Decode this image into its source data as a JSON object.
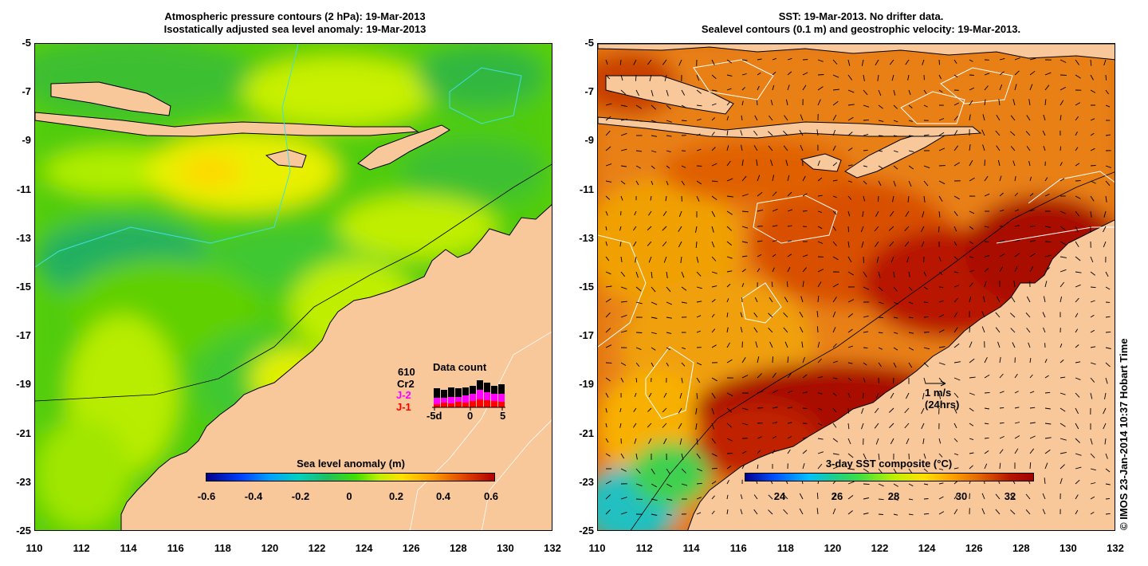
{
  "left_panel": {
    "title_line1": "Atmospheric pressure contours (2 hPa): 19-Mar-2013",
    "title_line2": "Isostatically adjusted sea level anomaly: 19-Mar-2013",
    "colorbar_title": "Sea level anomaly (m)",
    "colorbar_ticks": [
      "-0.6",
      "-0.4",
      "-0.2",
      "0",
      "0.2",
      "0.4",
      "0.6"
    ],
    "data_count": {
      "title": "Data count",
      "total": "610",
      "satellites": [
        "Cr2",
        "J-2",
        "J-1"
      ],
      "satellite_colors": [
        "#000000",
        "#ff00ff",
        "#ff0000"
      ],
      "axis_ticks": [
        "-5d",
        "0",
        "5"
      ]
    }
  },
  "right_panel": {
    "title_line1": "SST: 19-Mar-2013. No drifter data.",
    "title_line2": "Sealevel contours (0.1 m) and geostrophic velocity: 19-Mar-2013.",
    "colorbar_title": "3-day SST composite (°C)",
    "colorbar_ticks": [
      "24",
      "26",
      "28",
      "30",
      "32"
    ],
    "scale_arrow_label": "1 m/s",
    "scale_arrow_sublabel": "(24hrs)"
  },
  "y_ticks": [
    "-5",
    "-7",
    "-9",
    "-11",
    "-13",
    "-15",
    "-17",
    "-19",
    "-21",
    "-23",
    "-25"
  ],
  "x_ticks": [
    "110",
    "112",
    "114",
    "116",
    "118",
    "120",
    "122",
    "124",
    "126",
    "128",
    "130",
    "132"
  ],
  "credit": "© IMOS 23-Jan-2014 10:37 Hobart Time",
  "colors": {
    "land": "#f8c89a",
    "ssla_ramp": [
      "#00008b",
      "#0060ff",
      "#00c0e0",
      "#20c060",
      "#40e000",
      "#c0f000",
      "#ffe000",
      "#ff9000",
      "#e04000",
      "#b00000"
    ],
    "sst_ramp": [
      "#000090",
      "#0050ff",
      "#00c0ff",
      "#20d080",
      "#40e040",
      "#c0f000",
      "#ffe000",
      "#ffa000",
      "#e06000",
      "#b81400",
      "#a00000"
    ]
  }
}
